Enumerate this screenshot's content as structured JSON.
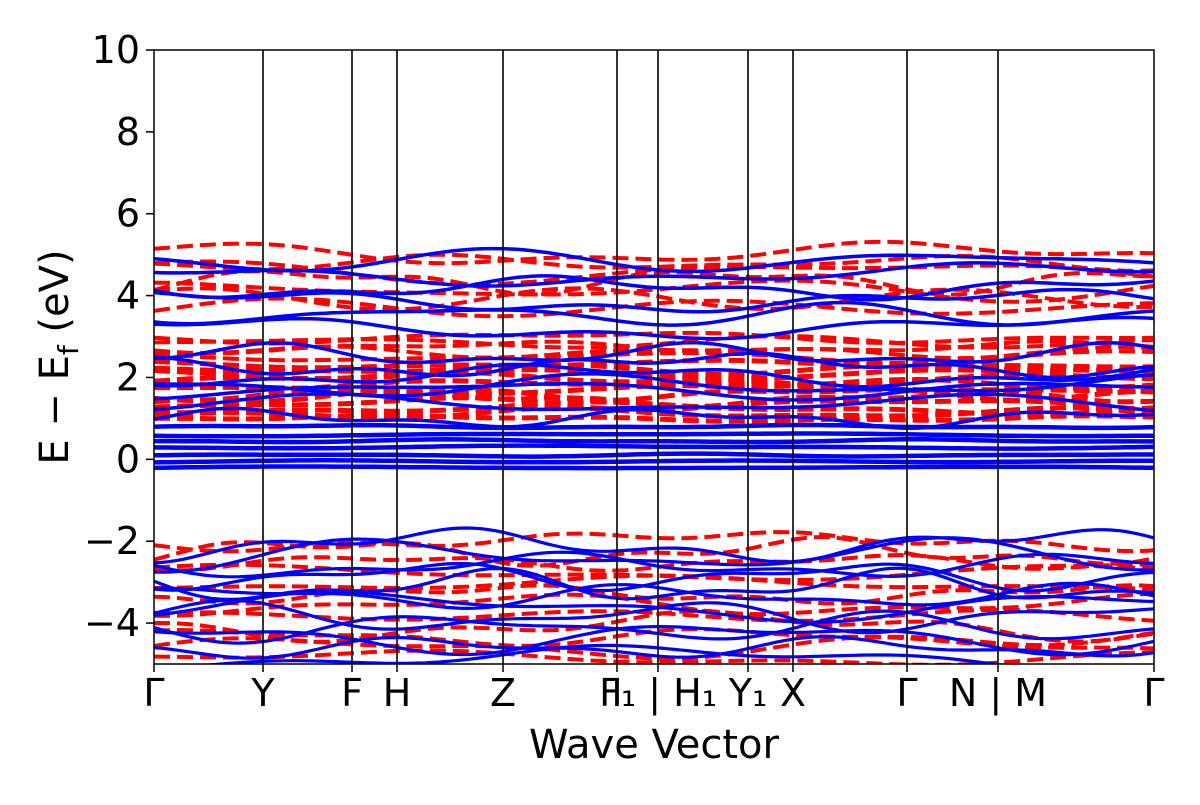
{
  "chart_data": {
    "type": "line",
    "title": "",
    "xlabel": "Wave Vector",
    "ylabel_main": "E − E",
    "ylabel_sub": "f",
    "ylabel_unit": " (eV)",
    "ylim": [
      -5,
      10
    ],
    "yticks": [
      -4,
      -2,
      0,
      2,
      4,
      6,
      8,
      10
    ],
    "ytick_labels": [
      "−4",
      "−2",
      "0",
      "2",
      "4",
      "6",
      "8",
      "10"
    ],
    "kpath": [
      {
        "label": "Γ",
        "x": 0.0
      },
      {
        "label": "Y",
        "x": 0.109
      },
      {
        "label": "F",
        "x": 0.198
      },
      {
        "label": "H",
        "x": 0.243
      },
      {
        "label": "Z",
        "x": 0.349
      },
      {
        "label": "I",
        "x": 0.463
      },
      {
        "label": "F₁ | H₁",
        "x": 0.504
      },
      {
        "label": "Y₁",
        "x": 0.594
      },
      {
        "label": "X",
        "x": 0.639
      },
      {
        "label": "Γ",
        "x": 0.753
      },
      {
        "label": "N | M",
        "x": 0.844
      },
      {
        "label": "Γ",
        "x": 1.0
      }
    ],
    "grid": false,
    "series": [
      {
        "style": "solid",
        "color": "#0000ff"
      },
      {
        "style": "dashed",
        "color": "#ff0000"
      }
    ]
  }
}
